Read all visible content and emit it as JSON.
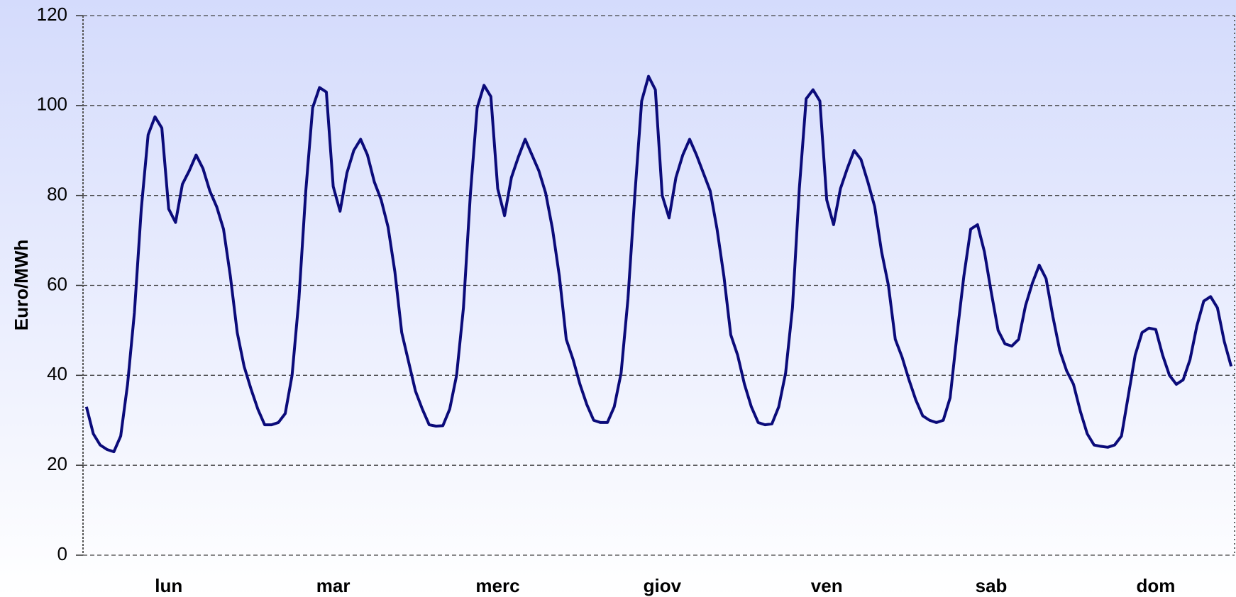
{
  "chart_data": {
    "type": "line",
    "ylabel": "Euro/MWh",
    "categories": [
      null,
      null,
      null,
      null,
      null,
      null,
      null,
      null,
      null,
      null,
      null,
      null,
      "lun",
      null,
      null,
      null,
      null,
      null,
      null,
      null,
      null,
      null,
      null,
      null,
      null,
      null,
      null,
      null,
      null,
      null,
      null,
      null,
      null,
      null,
      null,
      null,
      "mar",
      null,
      null,
      null,
      null,
      null,
      null,
      null,
      null,
      null,
      null,
      null,
      null,
      null,
      null,
      null,
      null,
      null,
      null,
      null,
      null,
      null,
      null,
      null,
      "merc",
      null,
      null,
      null,
      null,
      null,
      null,
      null,
      null,
      null,
      null,
      null,
      null,
      null,
      null,
      null,
      null,
      null,
      null,
      null,
      null,
      null,
      null,
      null,
      "giov",
      null,
      null,
      null,
      null,
      null,
      null,
      null,
      null,
      null,
      null,
      null,
      null,
      null,
      null,
      null,
      null,
      null,
      null,
      null,
      null,
      null,
      null,
      null,
      "ven",
      null,
      null,
      null,
      null,
      null,
      null,
      null,
      null,
      null,
      null,
      null,
      null,
      null,
      null,
      null,
      null,
      null,
      null,
      null,
      null,
      null,
      null,
      null,
      "sab",
      null,
      null,
      null,
      null,
      null,
      null,
      null,
      null,
      null,
      null,
      null,
      null,
      null,
      null,
      null,
      null,
      null,
      null,
      null,
      null,
      null,
      null,
      null,
      "dom",
      null,
      null,
      null,
      null,
      null,
      null,
      null,
      null,
      null,
      null,
      null
    ],
    "values": [
      33,
      27,
      24.5,
      23.5,
      23,
      26.5,
      38,
      54,
      77,
      93.5,
      97.5,
      95,
      77,
      74,
      82.5,
      85.5,
      89,
      86,
      81,
      77.5,
      72.5,
      62,
      49.5,
      42,
      37,
      32.5,
      29,
      29,
      29.5,
      31.5,
      40,
      57,
      81,
      99.5,
      104,
      103,
      82,
      76.5,
      85,
      90,
      92.5,
      89,
      83,
      79,
      73,
      63,
      49.5,
      43,
      36.5,
      32.5,
      29,
      28.7,
      28.8,
      32.5,
      40,
      55,
      80,
      99.5,
      104.5,
      102,
      81.5,
      75.5,
      84,
      88.5,
      92.5,
      89,
      85.5,
      80.5,
      72.5,
      62,
      48,
      43.5,
      38,
      33.5,
      30,
      29.5,
      29.5,
      33,
      40.5,
      57,
      80,
      101,
      106.5,
      103.5,
      80,
      75,
      84,
      89,
      92.5,
      89,
      85,
      81,
      72.5,
      62,
      49,
      44.5,
      38,
      33,
      29.5,
      29,
      29.2,
      33,
      40.5,
      55,
      81.5,
      101.5,
      103.5,
      101,
      79,
      73.5,
      81.5,
      86,
      90,
      88,
      83,
      77.5,
      67.5,
      60,
      48,
      44,
      39,
      34.5,
      31,
      30,
      29.5,
      30,
      35,
      49,
      62,
      72.5,
      73.5,
      67.5,
      58.5,
      50,
      47,
      46.5,
      48,
      55.5,
      60.5,
      64.5,
      61.5,
      53,
      45.5,
      41,
      38,
      32,
      27,
      24.5,
      24.2,
      24,
      24.5,
      26.5,
      35.5,
      44.5,
      49.5,
      50.5,
      50.2,
      44.5,
      40,
      38,
      39,
      43.5,
      51,
      56.5,
      57.5,
      55,
      47.5,
      42
    ],
    "color": "#0b0b7a",
    "ylim": [
      0,
      120
    ],
    "yticks": [
      0,
      20,
      40,
      60,
      80,
      100,
      120
    ],
    "grid": true
  }
}
